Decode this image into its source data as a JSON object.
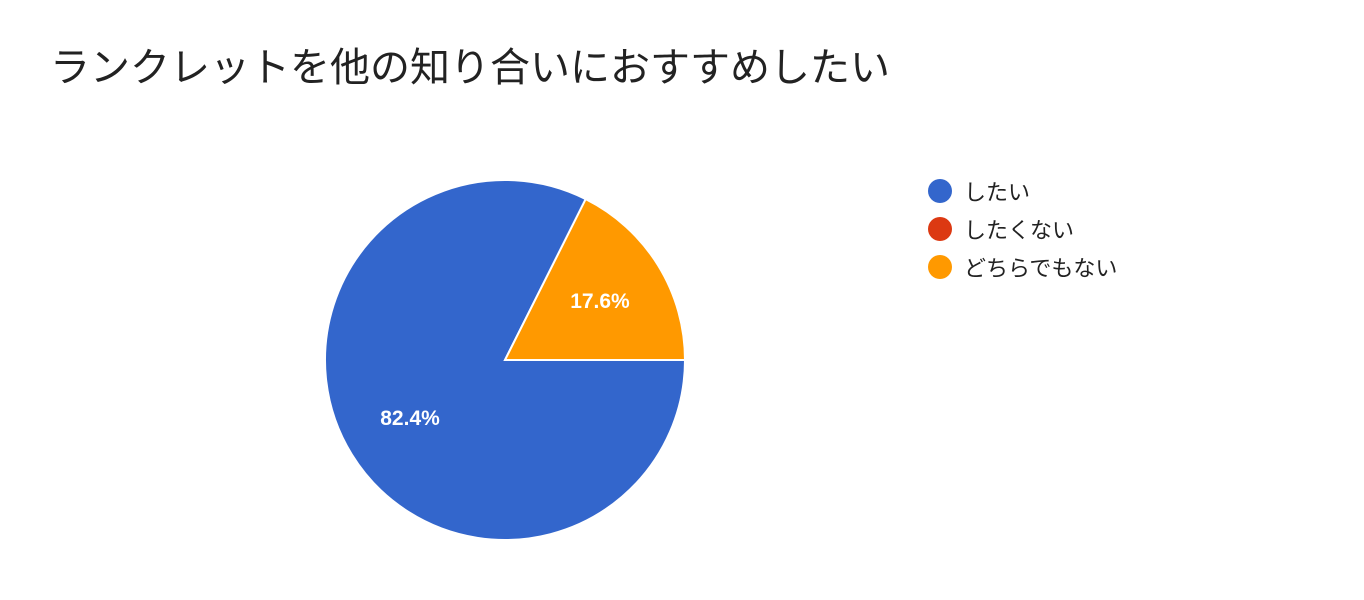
{
  "chart_data": {
    "type": "pie",
    "title": "ランクレットを他の知り合いにおすすめしたい",
    "legend_position": "right",
    "slices": [
      {
        "label": "したい",
        "value": 82.4,
        "display": "82.4%",
        "color": "#3366cc"
      },
      {
        "label": "したくない",
        "value": 0,
        "display": "",
        "color": "#dc3912"
      },
      {
        "label": "どちらでもない",
        "value": 17.6,
        "display": "17.6%",
        "color": "#ff9900"
      }
    ]
  }
}
